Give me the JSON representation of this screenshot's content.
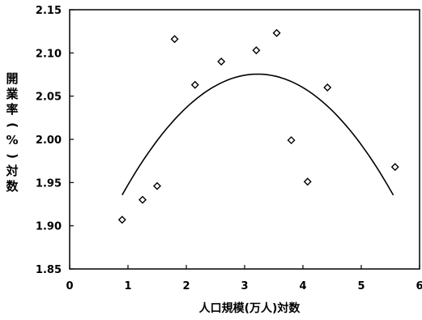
{
  "chart_data": {
    "type": "scatter",
    "xlabel": "人口規模(万人)対数",
    "ylabel": "開業率(%)対数",
    "xlim": [
      0,
      6
    ],
    "ylim": [
      1.85,
      2.15
    ],
    "xticks": [
      "0",
      "1",
      "2",
      "3",
      "4",
      "5",
      "6"
    ],
    "yticks": [
      "1.85",
      "1.90",
      "1.95",
      "2.00",
      "2.05",
      "2.10",
      "2.15"
    ],
    "grid": false,
    "points": {
      "x": [
        0.9,
        1.25,
        1.5,
        1.8,
        2.15,
        2.6,
        3.2,
        3.55,
        3.8,
        4.08,
        4.42,
        5.58
      ],
      "y": [
        1.907,
        1.93,
        1.946,
        2.116,
        2.063,
        2.09,
        2.103,
        2.123,
        1.999,
        1.951,
        2.06,
        1.968
      ],
      "marker": "diamond-open"
    },
    "trendline": {
      "type": "quadratic",
      "x_range": [
        0.9,
        5.55
      ],
      "coefficients": {
        "a": -0.0259,
        "b": 0.167,
        "c": 1.8063
      }
    }
  }
}
